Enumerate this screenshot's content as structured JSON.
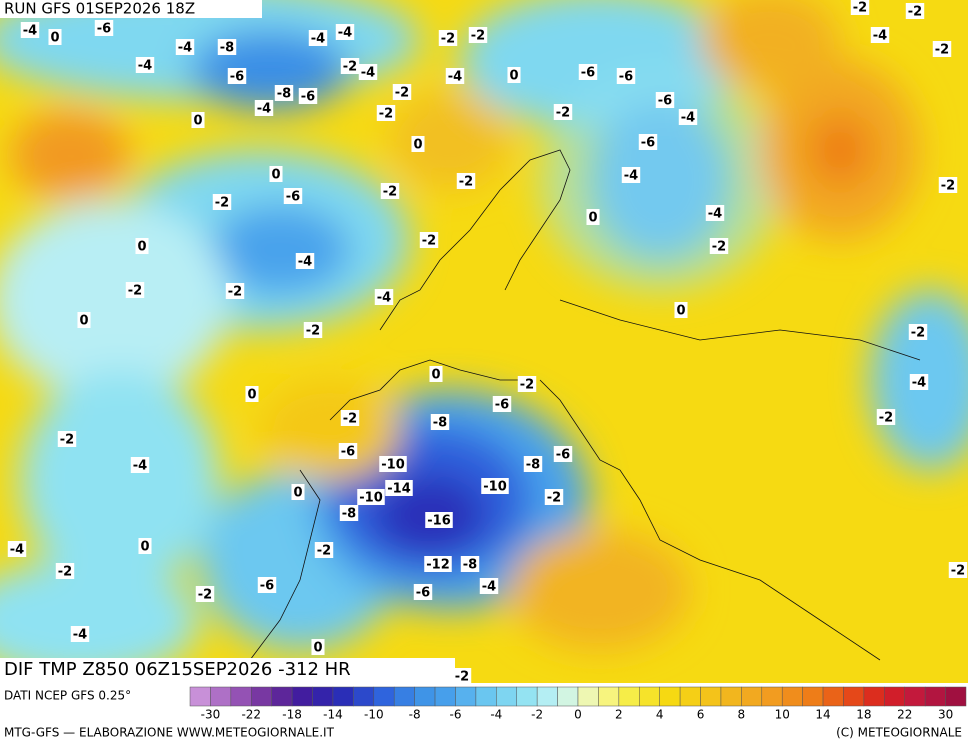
{
  "header": {
    "run": "RUN GFS 01SEP2026 18Z",
    "field": "DIF TMP Z850 06Z15SEP2026 -312 HR"
  },
  "footer": {
    "source": "DATI NCEP GFS 0.25°",
    "credit": "MTG-GFS — ELABORAZIONE WWW.METEOGIORNALE.IT",
    "copyright": "(C) METEOGIORNALE"
  },
  "legend": {
    "labels": [
      "-30",
      "-22",
      "-18",
      "-14",
      "-10",
      "-8",
      "-6",
      "-4",
      "-2",
      "0",
      "2",
      "4",
      "6",
      "8",
      "10",
      "14",
      "18",
      "22",
      "30"
    ]
  },
  "contour_labels": [
    "-4",
    "0",
    "-6",
    "-4",
    "-8",
    "-4",
    "-6",
    "-8",
    "-6",
    "-4",
    "-4",
    "-2",
    "-4",
    "-2",
    "-2",
    "-4",
    "0",
    "-6",
    "-6",
    "-6",
    "-4",
    "-2",
    "-2",
    "-2",
    "-4",
    "0",
    "0",
    "-2",
    "-2",
    "0",
    "-6",
    "-2",
    "-6",
    "-4",
    "0",
    "-4",
    "-2",
    "-2",
    "0",
    "-4",
    "-2",
    "-2",
    "0",
    "-4",
    "-2",
    "0",
    "-2",
    "0",
    "0",
    "-2",
    "-6",
    "-2",
    "-8",
    "-2",
    "-6",
    "-10",
    "-8",
    "-6",
    "-4",
    "-4",
    "0",
    "-14",
    "-10",
    "-10",
    "-2",
    "-8",
    "-16",
    "-4",
    "0",
    "-2",
    "-12",
    "-8",
    "-2",
    "-6",
    "-4",
    "-6",
    "-2",
    "-4",
    "0",
    "-2",
    "-2",
    "-2",
    "-4",
    "-2",
    "-2",
    "-2",
    "-2"
  ]
}
